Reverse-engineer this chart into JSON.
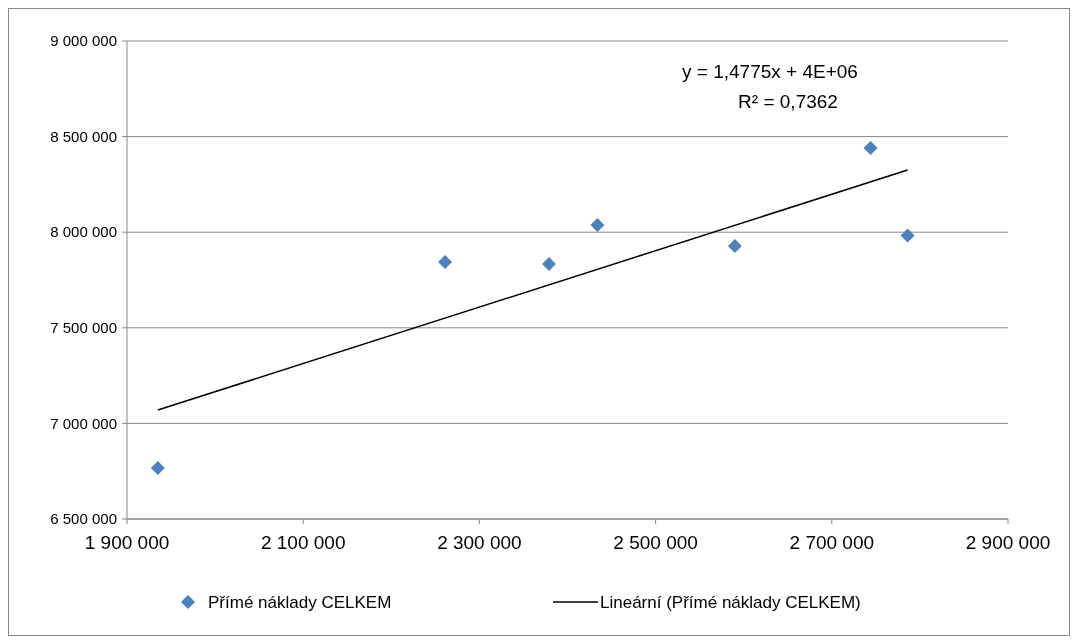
{
  "chart_data": {
    "type": "scatter",
    "xlim": [
      1900000,
      2900000
    ],
    "xticks": [
      {
        "value": 1900000,
        "label": "1 900 000"
      },
      {
        "value": 2100000,
        "label": "2 100 000"
      },
      {
        "value": 2300000,
        "label": "2 300 000"
      },
      {
        "value": 2500000,
        "label": "2 500 000"
      },
      {
        "value": 2700000,
        "label": "2 700 000"
      },
      {
        "value": 2900000,
        "label": "2 900 000"
      }
    ],
    "ylim": [
      6500000,
      9000000
    ],
    "yticks": [
      {
        "value": 6500000,
        "label": "6 500 000"
      },
      {
        "value": 7000000,
        "label": "7 000 000"
      },
      {
        "value": 7500000,
        "label": "7 500 000"
      },
      {
        "value": 8000000,
        "label": "8 000 000"
      },
      {
        "value": 8500000,
        "label": "8 500 000"
      },
      {
        "value": 9000000,
        "label": "9 000 000"
      }
    ],
    "grid": "y",
    "legend": "bottom",
    "marker": "diamond",
    "annotations": [
      "y = 1,4775x + 4E+06",
      "R² = 0,7362"
    ],
    "series": [
      {
        "name": "Přímé náklady CELKEM",
        "color": "#4f81bd",
        "x": [
          1935000,
          2261000,
          2379000,
          2434000,
          2590000,
          2744000,
          2786000
        ],
        "values": [
          6767000,
          7844000,
          7834000,
          8038000,
          7928000,
          8440000,
          7983000
        ]
      },
      {
        "name": "Lineární (Přímé náklady CELKEM)",
        "type": "line",
        "color": "#000000",
        "line_style": "solid",
        "marker": "none",
        "x": [
          1935000,
          2786000
        ],
        "values": [
          7070000,
          8325000
        ]
      }
    ]
  }
}
